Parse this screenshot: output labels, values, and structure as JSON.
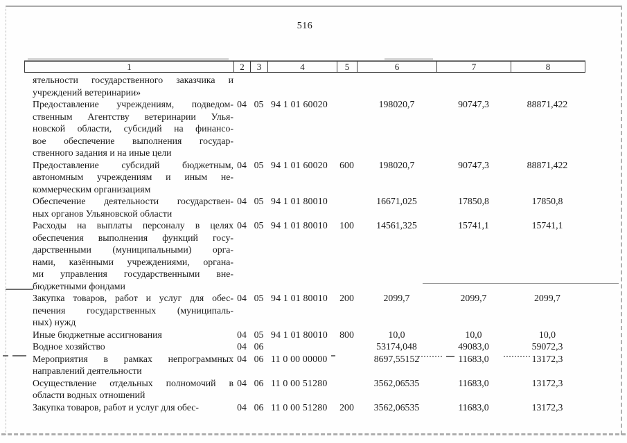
{
  "page": {
    "number": "516"
  },
  "table": {
    "header": [
      "1",
      "2",
      "3",
      "4",
      "5",
      "6",
      "7",
      "8"
    ],
    "rows": [
      {
        "lines": [
          "ятельности государственного заказчика и",
          "учреждений ветеринарии»"
        ],
        "rz": "",
        "pr": "",
        "csr": "",
        "vr": "",
        "a6": "",
        "a7": "",
        "a8": ""
      },
      {
        "lines": [
          "Предоставление учреждениям, подведом-",
          "ственным Агентству ветеринарии Улья-",
          "новской области, субсидий на финансо-",
          "вое обеспечение выполнения государ-",
          "ственного задания и на иные цели"
        ],
        "rz": "04",
        "pr": "05",
        "csr": "94 1 01 60020",
        "vr": "",
        "a6": "198020,7",
        "a7": "90747,3",
        "a8": "88871,422"
      },
      {
        "lines": [
          "Предоставление субсидий бюджетным,",
          "автономным учреждениям и иным не-",
          "коммерческим организациям"
        ],
        "rz": "04",
        "pr": "05",
        "csr": "94 1 01 60020",
        "vr": "600",
        "a6": "198020,7",
        "a7": "90747,3",
        "a8": "88871,422"
      },
      {
        "lines": [
          "Обеспечение деятельности государствен-",
          "ных органов Ульяновской области"
        ],
        "rz": "04",
        "pr": "05",
        "csr": "94 1 01 80010",
        "vr": "",
        "a6": "16671,025",
        "a7": "17850,8",
        "a8": "17850,8"
      },
      {
        "lines": [
          "Расходы на выплаты персоналу в целях",
          "обеспечения выполнения функций госу-",
          "дарственными (муниципальными) орга-",
          "нами, казёнными учреждениями, органа-",
          "ми управления государственными вне-",
          "бюджетными фондами"
        ],
        "rz": "04",
        "pr": "05",
        "csr": "94 1 01 80010",
        "vr": "100",
        "a6": "14561,325",
        "a7": "15741,1",
        "a8": "15741,1"
      },
      {
        "lines": [
          "Закупка товаров, работ и услуг для обес-",
          "печения государственных (муниципаль-",
          "ных) нужд"
        ],
        "rz": "04",
        "pr": "05",
        "csr": "94 1 01 80010",
        "vr": "200",
        "a6": "2099,7",
        "a7": "2099,7",
        "a8": "2099,7"
      },
      {
        "lines": [
          "Иные бюджетные ассигнования"
        ],
        "rz": "04",
        "pr": "05",
        "csr": "94 1 01 80010",
        "vr": "800",
        "a6": "10,0",
        "a7": "10,0",
        "a8": "10,0"
      },
      {
        "lines": [
          "Водное хозяйство"
        ],
        "rz": "04",
        "pr": "06",
        "csr": "",
        "vr": "",
        "a6": "53174,048",
        "a7": "49083,0",
        "a8": "59072,3"
      },
      {
        "lines": [
          "Мероприятия в рамках непрограммных",
          "направлений деятельности"
        ],
        "rz": "04",
        "pr": "06",
        "csr": "11 0 00 00000",
        "vr": "",
        "a6": "8697,55152",
        "a7": "11683,0",
        "a8": "13172,3"
      },
      {
        "lines": [
          "Осуществление отдельных полномочий в",
          "области водных отношений"
        ],
        "rz": "04",
        "pr": "06",
        "csr": "11 0 00 51280",
        "vr": "",
        "a6": "3562,06535",
        "a7": "11683,0",
        "a8": "13172,3"
      },
      {
        "lines": [
          "Закупка товаров, работ и услуг для обес-"
        ],
        "rz": "04",
        "pr": "06",
        "csr": "11 0 00 51280",
        "vr": "200",
        "a6": "3562,06535",
        "a7": "11683,0",
        "a8": "13172,3"
      }
    ]
  }
}
